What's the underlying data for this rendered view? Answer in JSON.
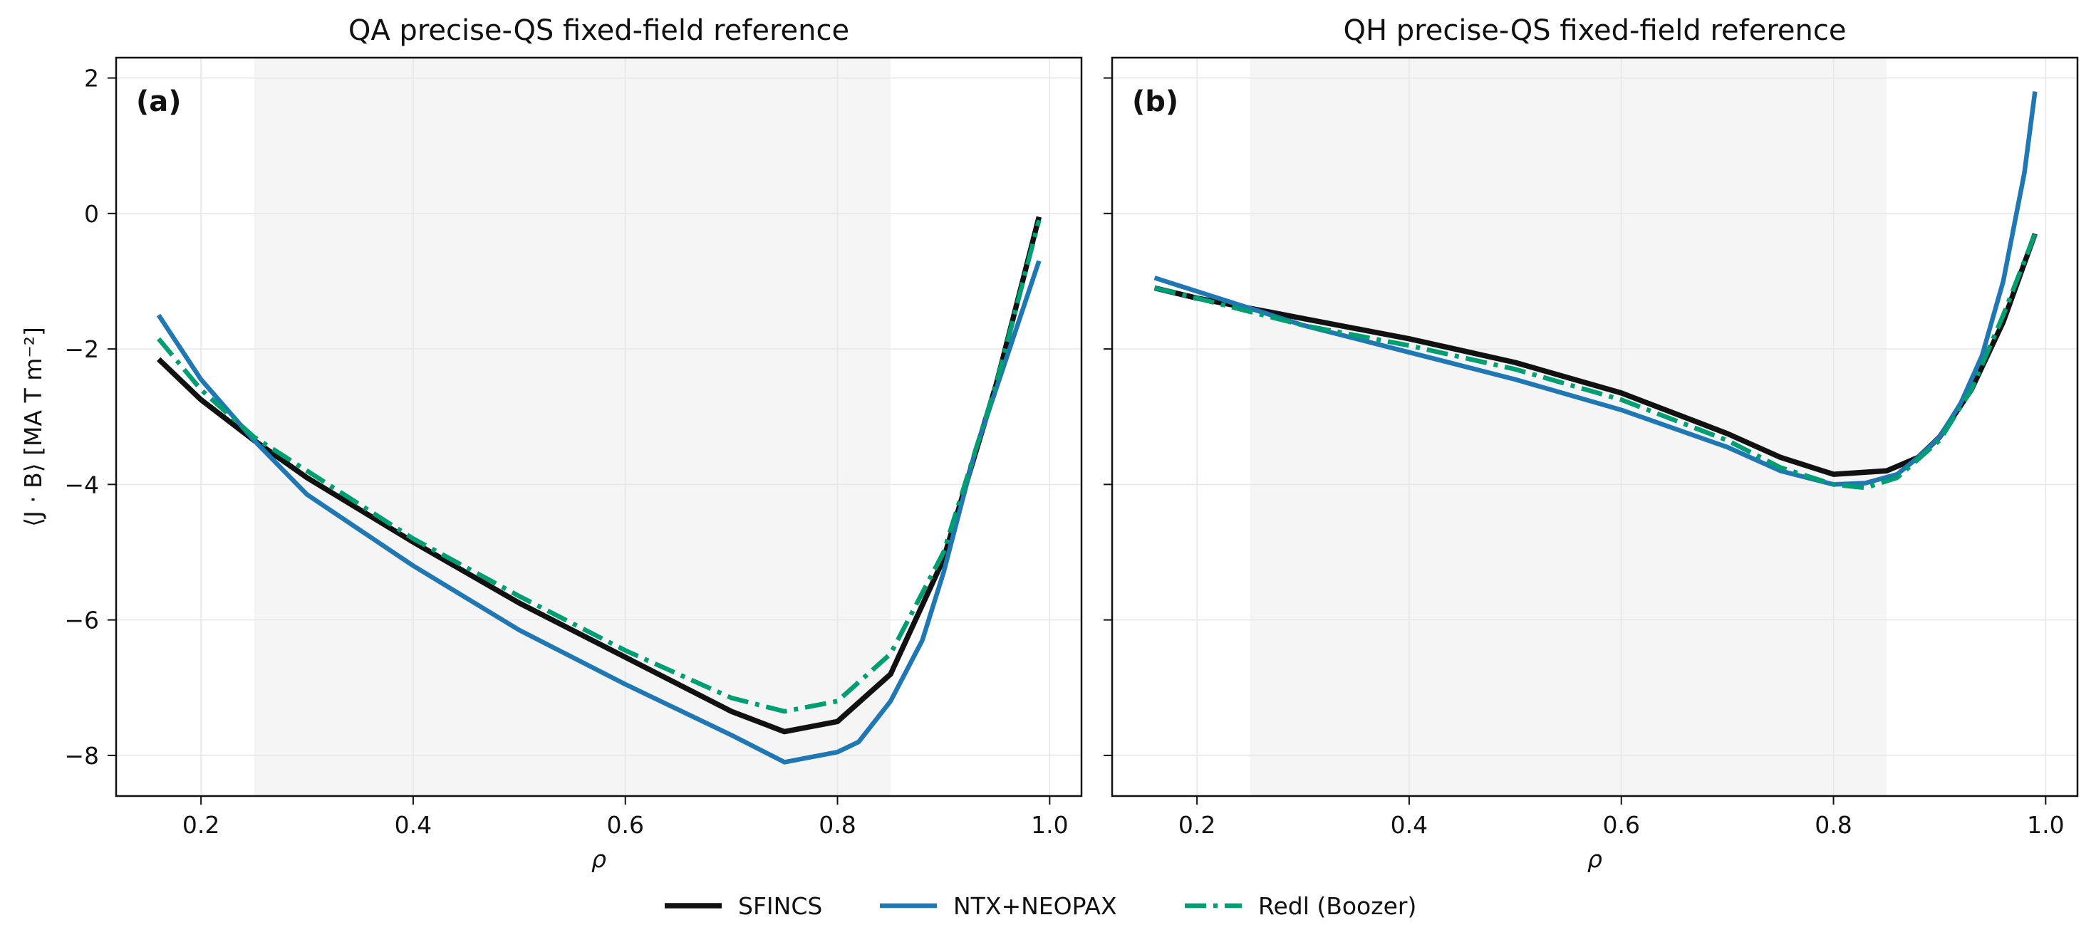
{
  "chart_data": [
    {
      "type": "line",
      "title": "QA precise-QS fixed-field reference",
      "panel_label": "(a)",
      "xlabel": "ρ",
      "ylabel": "⟨J · B⟩ [MA T m⁻²]",
      "xlim": [
        0.12,
        1.03
      ],
      "ylim": [
        -8.6,
        2.3
      ],
      "xticks": [
        0.2,
        0.4,
        0.6,
        0.8,
        1.0
      ],
      "xtick_labels": [
        "0.2",
        "0.4",
        "0.6",
        "0.8",
        "1.0"
      ],
      "yticks": [
        2,
        0,
        -2,
        -4,
        -6,
        -8
      ],
      "ytick_labels": [
        "2",
        "0",
        "−2",
        "−4",
        "−6",
        "−8"
      ],
      "grid": true,
      "shaded_band": [
        0.25,
        0.85
      ],
      "series": [
        {
          "name": "SFINCS",
          "x": [
            0.16,
            0.2,
            0.25,
            0.3,
            0.4,
            0.5,
            0.6,
            0.7,
            0.75,
            0.8,
            0.85,
            0.9,
            0.95,
            0.99
          ],
          "y": [
            -2.15,
            -2.75,
            -3.35,
            -3.9,
            -4.85,
            -5.75,
            -6.55,
            -7.35,
            -7.65,
            -7.5,
            -6.8,
            -5.1,
            -2.5,
            -0.05
          ]
        },
        {
          "name": "NTX+NEOPAX",
          "x": [
            0.16,
            0.2,
            0.25,
            0.3,
            0.4,
            0.5,
            0.6,
            0.7,
            0.75,
            0.8,
            0.82,
            0.85,
            0.88,
            0.9,
            0.93,
            0.96,
            0.99
          ],
          "y": [
            -1.5,
            -2.45,
            -3.35,
            -4.15,
            -5.2,
            -6.15,
            -6.95,
            -7.7,
            -8.1,
            -7.95,
            -7.8,
            -7.2,
            -6.3,
            -5.3,
            -3.5,
            -2.1,
            -0.7
          ]
        },
        {
          "name": "Redl (Boozer)",
          "x": [
            0.16,
            0.2,
            0.25,
            0.3,
            0.4,
            0.5,
            0.6,
            0.7,
            0.75,
            0.8,
            0.85,
            0.9,
            0.95,
            0.99
          ],
          "y": [
            -1.85,
            -2.6,
            -3.3,
            -3.8,
            -4.8,
            -5.65,
            -6.45,
            -7.15,
            -7.35,
            -7.2,
            -6.5,
            -5.0,
            -2.5,
            -0.1
          ]
        }
      ]
    },
    {
      "type": "line",
      "title": "QH precise-QS fixed-field reference",
      "panel_label": "(b)",
      "xlabel": "ρ",
      "xlim": [
        0.12,
        1.03
      ],
      "ylim": [
        -8.6,
        2.3
      ],
      "xticks": [
        0.2,
        0.4,
        0.6,
        0.8,
        1.0
      ],
      "xtick_labels": [
        "0.2",
        "0.4",
        "0.6",
        "0.8",
        "1.0"
      ],
      "grid": true,
      "shaded_band": [
        0.25,
        0.85
      ],
      "series": [
        {
          "name": "SFINCS",
          "x": [
            0.16,
            0.2,
            0.25,
            0.3,
            0.4,
            0.5,
            0.6,
            0.7,
            0.75,
            0.8,
            0.85,
            0.88,
            0.9,
            0.93,
            0.96,
            0.99
          ],
          "y": [
            -1.1,
            -1.25,
            -1.4,
            -1.55,
            -1.85,
            -2.2,
            -2.65,
            -3.25,
            -3.6,
            -3.85,
            -3.8,
            -3.6,
            -3.3,
            -2.6,
            -1.6,
            -0.3
          ]
        },
        {
          "name": "NTX+NEOPAX",
          "x": [
            0.16,
            0.2,
            0.25,
            0.3,
            0.4,
            0.5,
            0.6,
            0.7,
            0.75,
            0.8,
            0.83,
            0.86,
            0.88,
            0.9,
            0.92,
            0.94,
            0.96,
            0.98,
            0.99
          ],
          "y": [
            -0.95,
            -1.15,
            -1.4,
            -1.65,
            -2.05,
            -2.45,
            -2.9,
            -3.45,
            -3.8,
            -4.0,
            -3.98,
            -3.85,
            -3.6,
            -3.3,
            -2.8,
            -2.1,
            -1.0,
            0.6,
            1.8
          ]
        },
        {
          "name": "Redl (Boozer)",
          "x": [
            0.16,
            0.2,
            0.25,
            0.3,
            0.4,
            0.5,
            0.6,
            0.7,
            0.75,
            0.8,
            0.83,
            0.86,
            0.9,
            0.93,
            0.96,
            0.99
          ],
          "y": [
            -1.1,
            -1.25,
            -1.45,
            -1.65,
            -1.95,
            -2.3,
            -2.75,
            -3.35,
            -3.75,
            -4.0,
            -4.05,
            -3.9,
            -3.35,
            -2.6,
            -1.5,
            -0.3
          ]
        }
      ]
    }
  ],
  "legend": {
    "placement": "bottom-center",
    "items": [
      "SFINCS",
      "NTX+NEOPAX",
      "Redl (Boozer)"
    ]
  },
  "colors": {
    "SFINCS": "#111111",
    "NTX+NEOPAX": "#1f77b4",
    "Redl (Boozer)": "#009e73",
    "band": "#f5f5f5",
    "grid": "#e6e6e6"
  }
}
